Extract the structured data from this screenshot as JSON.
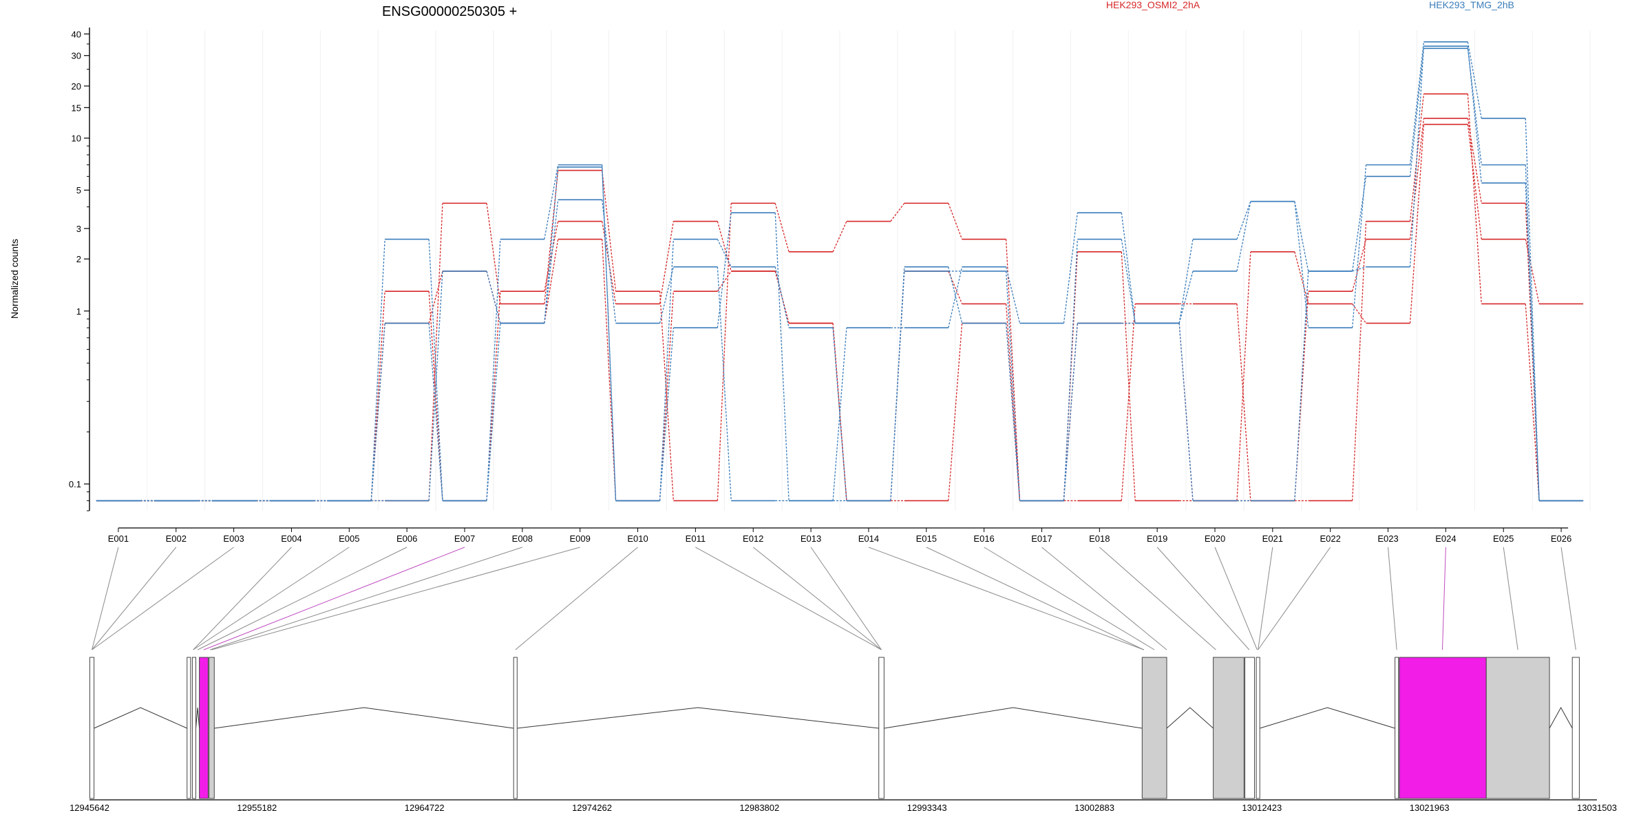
{
  "title": "ENSG00000250305 +",
  "ylabel": "Normalized counts",
  "legend": [
    {
      "name": "HEK293_OSMI2_2hA",
      "color": "#d62728"
    },
    {
      "name": "HEK293_TMG_2hB",
      "color": "#3a7dbb"
    }
  ],
  "chart_data": {
    "type": "line",
    "yscale": "log",
    "ylim": [
      0.07,
      42
    ],
    "yticks": [
      0.1,
      1,
      2,
      3,
      5,
      10,
      15,
      20,
      30,
      40
    ],
    "ytick_labels": [
      "0.1",
      "1",
      "2",
      "3",
      "5",
      "10",
      "15",
      "20",
      "30",
      "40"
    ],
    "exons": [
      "E001",
      "E002",
      "E003",
      "E004",
      "E005",
      "E006",
      "E007",
      "E008",
      "E009",
      "E010",
      "E011",
      "E012",
      "E013",
      "E014",
      "E015",
      "E016",
      "E017",
      "E018",
      "E019",
      "E020",
      "E021",
      "E022",
      "E023",
      "E024",
      "E025",
      "E026"
    ],
    "highlighted_exons": [
      "E007",
      "E024"
    ],
    "series": [
      {
        "group": "HEK293_OSMI2_2hA",
        "values": [
          0.08,
          0.08,
          0.08,
          0.08,
          0.08,
          0.08,
          4.2,
          1.1,
          6.5,
          1.3,
          0.08,
          4.2,
          2.2,
          3.3,
          4.2,
          2.6,
          0.08,
          2.2,
          0.08,
          0.08,
          2.2,
          1.1,
          0.85,
          12,
          2.6,
          1.1
        ]
      },
      {
        "group": "HEK293_OSMI2_2hA",
        "values": [
          0.08,
          0.08,
          0.08,
          0.08,
          0.08,
          1.3,
          0.08,
          1.3,
          3.3,
          1.1,
          3.3,
          1.7,
          0.85,
          0.08,
          1.7,
          1.1,
          0.08,
          0.08,
          1.1,
          1.1,
          0.08,
          0.08,
          3.3,
          18,
          1.1,
          0.08
        ]
      },
      {
        "group": "HEK293_OSMI2_2hA",
        "values": [
          0.08,
          0.08,
          0.08,
          0.08,
          0.08,
          0.85,
          1.7,
          0.85,
          2.6,
          0.08,
          1.3,
          1.7,
          0.85,
          0.08,
          0.08,
          0.85,
          0.08,
          0.85,
          0.85,
          0.08,
          0.08,
          1.3,
          2.6,
          13,
          4.2,
          0.08
        ]
      },
      {
        "group": "HEK293_TMG_2hB",
        "values": [
          0.08,
          0.08,
          0.08,
          0.08,
          0.08,
          2.6,
          0.08,
          2.6,
          7.0,
          0.08,
          0.8,
          3.7,
          0.08,
          0.8,
          0.8,
          1.8,
          0.85,
          3.7,
          0.85,
          2.6,
          4.3,
          0.8,
          7.0,
          36,
          13,
          0.08
        ]
      },
      {
        "group": "HEK293_TMG_2hB",
        "values": [
          0.08,
          0.08,
          0.08,
          0.08,
          0.08,
          0.08,
          1.7,
          0.85,
          4.4,
          0.85,
          1.8,
          0.08,
          0.08,
          0.08,
          1.7,
          1.7,
          0.08,
          2.6,
          0.85,
          1.7,
          4.3,
          1.7,
          1.8,
          34,
          5.5,
          0.08
        ]
      },
      {
        "group": "HEK293_TMG_2hB",
        "values": [
          0.08,
          0.08,
          0.08,
          0.08,
          0.08,
          0.85,
          0.08,
          0.85,
          6.8,
          0.08,
          2.6,
          1.8,
          0.8,
          0.08,
          1.8,
          0.85,
          0.08,
          0.85,
          0.85,
          0.08,
          0.08,
          1.7,
          6.0,
          33,
          7.0,
          0.08
        ]
      }
    ],
    "genomic_ticks": [
      "12945642",
      "12955182",
      "12964722",
      "12974262",
      "12983802",
      "12993343",
      "13002883",
      "13012423",
      "13021963",
      "13031503"
    ],
    "gene_model": {
      "start": 12945642,
      "end": 13031503,
      "blocks": [
        {
          "start": 12945660,
          "end": 12945900,
          "fill": "white"
        },
        {
          "start": 12951200,
          "end": 12951400,
          "fill": "white"
        },
        {
          "start": 12951500,
          "end": 12951700,
          "fill": "white"
        },
        {
          "start": 12951900,
          "end": 12952400,
          "fill": "#f21ee8"
        },
        {
          "start": 12952450,
          "end": 12952750,
          "fill": "#cfcfcf"
        },
        {
          "start": 12969800,
          "end": 12970000,
          "fill": "white"
        },
        {
          "start": 12990600,
          "end": 12990900,
          "fill": "white"
        },
        {
          "start": 13005600,
          "end": 13007000,
          "fill": "#cfcfcf"
        },
        {
          "start": 13009650,
          "end": 13011400,
          "fill": "#cfcfcf"
        },
        {
          "start": 13011450,
          "end": 13012000,
          "fill": "white"
        },
        {
          "start": 13012100,
          "end": 13012300,
          "fill": "white"
        },
        {
          "start": 13020000,
          "end": 13020200,
          "fill": "white"
        },
        {
          "start": 13020250,
          "end": 13025200,
          "fill": "#f21ee8"
        },
        {
          "start": 13025200,
          "end": 13028800,
          "fill": "#cfcfcf"
        },
        {
          "start": 13030100,
          "end": 13030500,
          "fill": "white"
        }
      ]
    }
  }
}
